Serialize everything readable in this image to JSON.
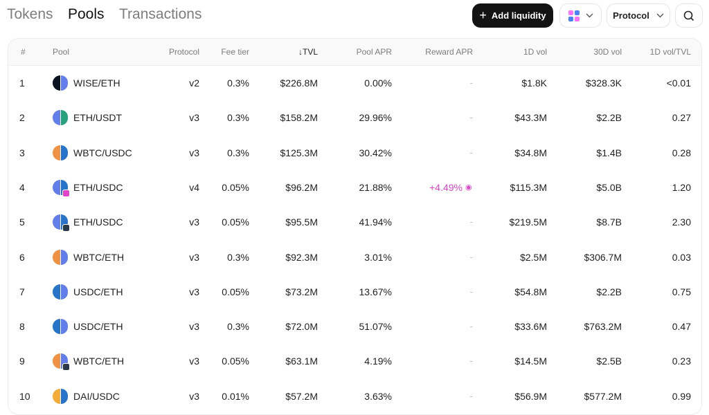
{
  "nav": {
    "tabs": [
      {
        "label": "Tokens"
      },
      {
        "label": "Pools"
      },
      {
        "label": "Transactions"
      }
    ]
  },
  "toolbar": {
    "add_liquidity_label": "Add liquidity",
    "protocol_label": "Protocol"
  },
  "colors": {
    "accent": "#131313",
    "reward": "#e043c9",
    "v4_badge": "#e043c9",
    "v3_badge": "#2b3a4a"
  },
  "table": {
    "headers": {
      "rank": "#",
      "pool": "Pool",
      "protocol": "Protocol",
      "fee": "Fee tier",
      "tvl": "TVL",
      "pool_apr": "Pool APR",
      "reward_apr": "Reward APR",
      "vol1d": "1D vol",
      "vol30d": "30D vol",
      "ratio": "1D vol/TVL"
    },
    "rows": [
      {
        "rank": "1",
        "pool": "WISE/ETH",
        "protocol": "v2",
        "fee": "0.3%",
        "tvl": "$226.8M",
        "pool_apr": "0.00%",
        "reward_apr": "-",
        "vol1d": "$1.8K",
        "vol30d": "$328.3K",
        "ratio": "<0.01",
        "t1": "#0b1320",
        "t2": "#627eea",
        "badge": ""
      },
      {
        "rank": "2",
        "pool": "ETH/USDT",
        "protocol": "v3",
        "fee": "0.3%",
        "tvl": "$158.2M",
        "pool_apr": "29.96%",
        "reward_apr": "-",
        "vol1d": "$43.3M",
        "vol30d": "$2.2B",
        "ratio": "0.27",
        "t1": "#627eea",
        "t2": "#26a17b",
        "badge": ""
      },
      {
        "rank": "3",
        "pool": "WBTC/USDC",
        "protocol": "v3",
        "fee": "0.3%",
        "tvl": "$125.3M",
        "pool_apr": "30.42%",
        "reward_apr": "-",
        "vol1d": "$34.8M",
        "vol30d": "$1.4B",
        "ratio": "0.28",
        "t1": "#f09242",
        "t2": "#2775ca",
        "badge": ""
      },
      {
        "rank": "4",
        "pool": "ETH/USDC",
        "protocol": "v4",
        "fee": "0.05%",
        "tvl": "$96.2M",
        "pool_apr": "21.88%",
        "reward_apr": "+4.49%",
        "vol1d": "$115.3M",
        "vol30d": "$5.0B",
        "ratio": "1.20",
        "t1": "#627eea",
        "t2": "#2775ca",
        "badge": "#e043c9"
      },
      {
        "rank": "5",
        "pool": "ETH/USDC",
        "protocol": "v3",
        "fee": "0.05%",
        "tvl": "$95.5M",
        "pool_apr": "41.94%",
        "reward_apr": "-",
        "vol1d": "$219.5M",
        "vol30d": "$8.7B",
        "ratio": "2.30",
        "t1": "#627eea",
        "t2": "#2775ca",
        "badge": "#2b3a4a"
      },
      {
        "rank": "6",
        "pool": "WBTC/ETH",
        "protocol": "v3",
        "fee": "0.3%",
        "tvl": "$92.3M",
        "pool_apr": "3.01%",
        "reward_apr": "-",
        "vol1d": "$2.5M",
        "vol30d": "$306.7M",
        "ratio": "0.03",
        "t1": "#f09242",
        "t2": "#627eea",
        "badge": ""
      },
      {
        "rank": "7",
        "pool": "USDC/ETH",
        "protocol": "v3",
        "fee": "0.05%",
        "tvl": "$73.2M",
        "pool_apr": "13.67%",
        "reward_apr": "-",
        "vol1d": "$54.8M",
        "vol30d": "$2.2B",
        "ratio": "0.75",
        "t1": "#2775ca",
        "t2": "#627eea",
        "badge": ""
      },
      {
        "rank": "8",
        "pool": "USDC/ETH",
        "protocol": "v3",
        "fee": "0.3%",
        "tvl": "$72.0M",
        "pool_apr": "51.07%",
        "reward_apr": "-",
        "vol1d": "$33.6M",
        "vol30d": "$763.2M",
        "ratio": "0.47",
        "t1": "#2775ca",
        "t2": "#627eea",
        "badge": ""
      },
      {
        "rank": "9",
        "pool": "WBTC/ETH",
        "protocol": "v3",
        "fee": "0.05%",
        "tvl": "$63.1M",
        "pool_apr": "4.19%",
        "reward_apr": "-",
        "vol1d": "$14.5M",
        "vol30d": "$2.5B",
        "ratio": "0.23",
        "t1": "#f09242",
        "t2": "#627eea",
        "badge": "#2b3a4a"
      },
      {
        "rank": "10",
        "pool": "DAI/USDC",
        "protocol": "v3",
        "fee": "0.01%",
        "tvl": "$57.2M",
        "pool_apr": "3.63%",
        "reward_apr": "-",
        "vol1d": "$56.9M",
        "vol30d": "$577.2M",
        "ratio": "0.99",
        "t1": "#f5ac37",
        "t2": "#2775ca",
        "badge": ""
      }
    ]
  }
}
